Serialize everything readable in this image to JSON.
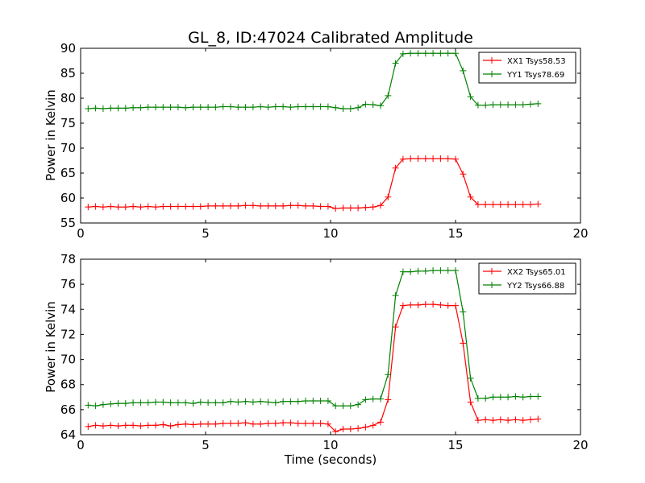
{
  "title": "GL_8, ID:47024 Calibrated Amplitude",
  "colors": {
    "xx": "#ff0000",
    "yy": "#008000"
  },
  "chart_data": [
    {
      "type": "line",
      "xlabel": "",
      "ylabel": "Power in Kelvin",
      "xlim": [
        0,
        20
      ],
      "ylim": [
        55,
        90
      ],
      "xticks": [
        0,
        5,
        10,
        15,
        20
      ],
      "yticks": [
        55,
        60,
        65,
        70,
        75,
        80,
        85,
        90
      ],
      "legend_position": "top-right",
      "x": [
        0.3,
        0.6,
        0.9,
        1.2,
        1.5,
        1.8,
        2.1,
        2.4,
        2.7,
        3.0,
        3.3,
        3.6,
        3.9,
        4.2,
        4.5,
        4.8,
        5.1,
        5.4,
        5.7,
        6.0,
        6.3,
        6.6,
        6.9,
        7.2,
        7.5,
        7.8,
        8.1,
        8.4,
        8.7,
        9.0,
        9.3,
        9.6,
        9.9,
        10.2,
        10.5,
        10.8,
        11.1,
        11.4,
        11.7,
        12.0,
        12.3,
        12.6,
        12.9,
        13.2,
        13.5,
        13.8,
        14.1,
        14.4,
        14.7,
        15.0,
        15.3,
        15.6,
        15.9,
        16.2,
        16.5,
        16.8,
        17.1,
        17.4,
        17.7,
        18.0,
        18.3
      ],
      "series": [
        {
          "name": "XX1 Tsys58.53",
          "color_key": "xx",
          "values": [
            58.2,
            58.3,
            58.2,
            58.3,
            58.2,
            58.2,
            58.3,
            58.2,
            58.3,
            58.2,
            58.3,
            58.3,
            58.3,
            58.3,
            58.3,
            58.3,
            58.4,
            58.4,
            58.4,
            58.4,
            58.4,
            58.5,
            58.5,
            58.4,
            58.4,
            58.4,
            58.4,
            58.5,
            58.5,
            58.4,
            58.4,
            58.3,
            58.3,
            57.9,
            58.0,
            58.0,
            58.0,
            58.1,
            58.2,
            58.5,
            60.2,
            66.0,
            67.8,
            67.9,
            67.9,
            67.9,
            67.9,
            67.9,
            67.9,
            67.8,
            64.8,
            60.2,
            58.7,
            58.7,
            58.7,
            58.7,
            58.7,
            58.7,
            58.7,
            58.7,
            58.8
          ]
        },
        {
          "name": "YY1 Tsys78.69",
          "color_key": "yy",
          "values": [
            77.9,
            78.0,
            77.9,
            78.0,
            78.0,
            78.0,
            78.1,
            78.1,
            78.2,
            78.2,
            78.2,
            78.2,
            78.2,
            78.1,
            78.2,
            78.2,
            78.2,
            78.2,
            78.3,
            78.3,
            78.2,
            78.2,
            78.2,
            78.3,
            78.2,
            78.3,
            78.3,
            78.2,
            78.3,
            78.3,
            78.3,
            78.3,
            78.3,
            78.1,
            77.9,
            77.9,
            78.1,
            78.8,
            78.7,
            78.5,
            80.5,
            87.0,
            88.9,
            89.0,
            89.0,
            89.0,
            89.0,
            89.0,
            89.0,
            89.0,
            85.5,
            80.3,
            78.6,
            78.6,
            78.7,
            78.7,
            78.7,
            78.7,
            78.7,
            78.8,
            78.9
          ]
        }
      ]
    },
    {
      "type": "line",
      "xlabel": "Time (seconds)",
      "ylabel": "Power in Kelvin",
      "xlim": [
        0,
        20
      ],
      "ylim": [
        64,
        78
      ],
      "xticks": [
        0,
        5,
        10,
        15,
        20
      ],
      "yticks": [
        64,
        66,
        68,
        70,
        72,
        74,
        76,
        78
      ],
      "legend_position": "top-right",
      "x": [
        0.3,
        0.6,
        0.9,
        1.2,
        1.5,
        1.8,
        2.1,
        2.4,
        2.7,
        3.0,
        3.3,
        3.6,
        3.9,
        4.2,
        4.5,
        4.8,
        5.1,
        5.4,
        5.7,
        6.0,
        6.3,
        6.6,
        6.9,
        7.2,
        7.5,
        7.8,
        8.1,
        8.4,
        8.7,
        9.0,
        9.3,
        9.6,
        9.9,
        10.2,
        10.5,
        10.8,
        11.1,
        11.4,
        11.7,
        12.0,
        12.3,
        12.6,
        12.9,
        13.2,
        13.5,
        13.8,
        14.1,
        14.4,
        14.7,
        15.0,
        15.3,
        15.6,
        15.9,
        16.2,
        16.5,
        16.8,
        17.1,
        17.4,
        17.7,
        18.0,
        18.3
      ],
      "series": [
        {
          "name": "XX2 Tsys65.01",
          "color_key": "xx",
          "values": [
            64.65,
            64.75,
            64.7,
            64.75,
            64.7,
            64.75,
            64.75,
            64.7,
            64.75,
            64.75,
            64.8,
            64.7,
            64.8,
            64.85,
            64.8,
            64.85,
            64.85,
            64.85,
            64.9,
            64.9,
            64.9,
            64.95,
            64.85,
            64.85,
            64.9,
            64.9,
            64.95,
            64.95,
            64.9,
            64.9,
            64.9,
            64.9,
            64.85,
            64.25,
            64.45,
            64.45,
            64.5,
            64.6,
            64.75,
            65.0,
            66.8,
            72.6,
            74.3,
            74.35,
            74.35,
            74.4,
            74.4,
            74.35,
            74.3,
            74.3,
            71.3,
            66.6,
            65.15,
            65.2,
            65.15,
            65.2,
            65.15,
            65.2,
            65.15,
            65.2,
            65.25
          ]
        },
        {
          "name": "YY2 Tsys66.88",
          "color_key": "yy",
          "values": [
            66.35,
            66.3,
            66.4,
            66.45,
            66.5,
            66.5,
            66.55,
            66.55,
            66.55,
            66.6,
            66.6,
            66.55,
            66.55,
            66.55,
            66.5,
            66.6,
            66.55,
            66.55,
            66.55,
            66.65,
            66.6,
            66.65,
            66.6,
            66.65,
            66.6,
            66.55,
            66.65,
            66.65,
            66.65,
            66.7,
            66.7,
            66.7,
            66.7,
            66.3,
            66.3,
            66.3,
            66.4,
            66.8,
            66.85,
            66.85,
            68.8,
            75.1,
            77.0,
            77.0,
            77.05,
            77.05,
            77.1,
            77.1,
            77.1,
            77.1,
            73.8,
            68.5,
            66.9,
            66.9,
            67.0,
            67.0,
            67.0,
            67.05,
            67.0,
            67.05,
            67.05
          ]
        }
      ]
    }
  ]
}
